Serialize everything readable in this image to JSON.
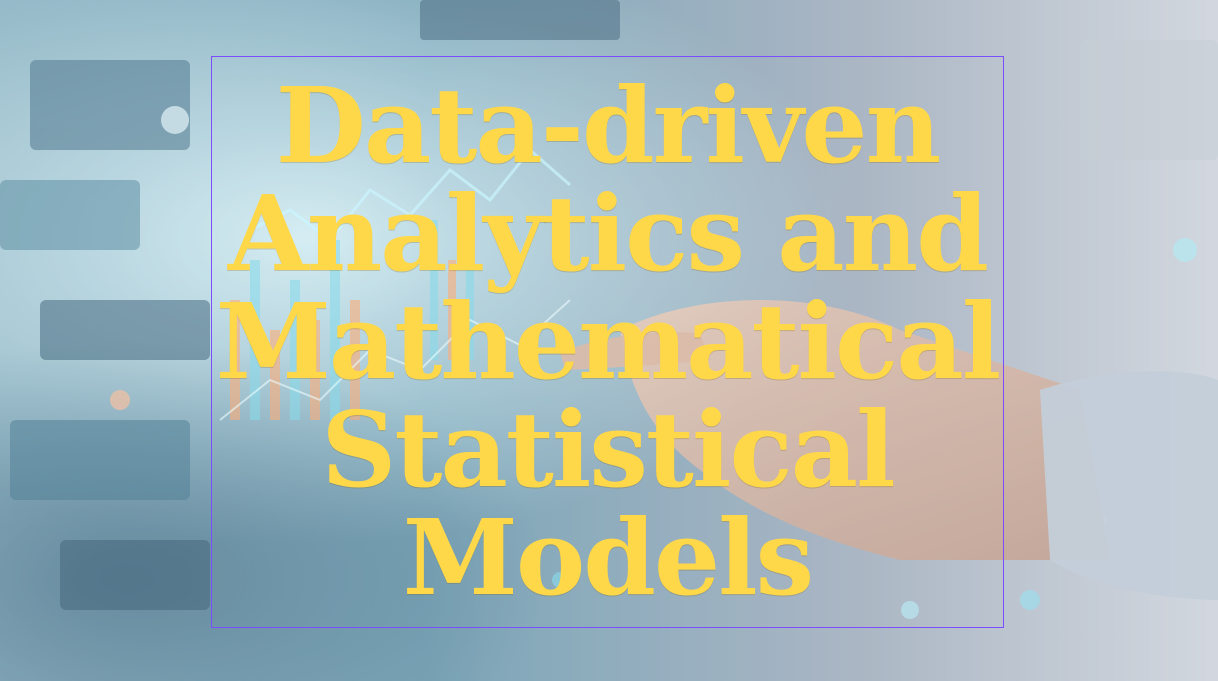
{
  "title": {
    "lines": [
      "Data-driven",
      "Analytics and",
      "Mathematical",
      "Statistical",
      "Models"
    ],
    "color": "#ffd84a"
  },
  "frame": {
    "border_color": "#7a4dff"
  },
  "background": {
    "description_icon": "financial-dashboard-touch-photo"
  }
}
